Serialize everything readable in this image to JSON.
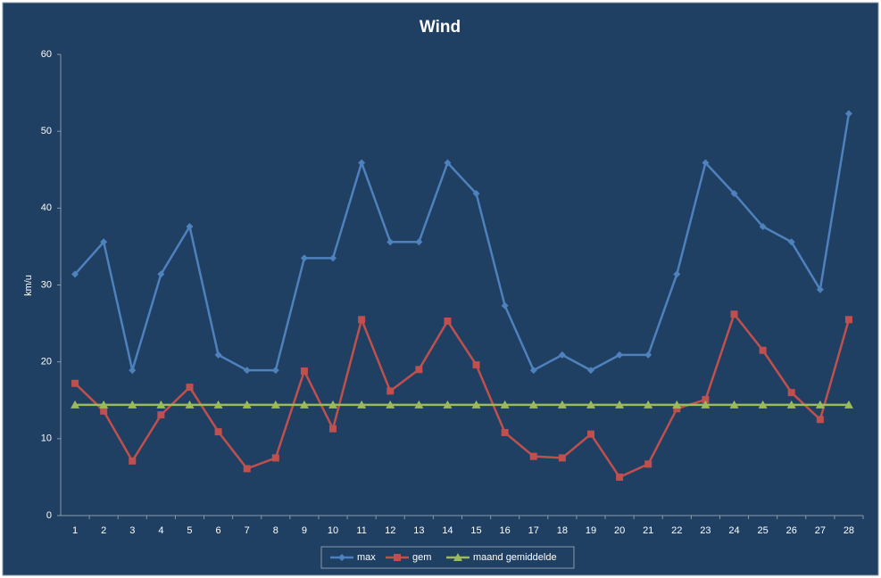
{
  "chart_data": {
    "type": "line",
    "title": "Wind",
    "y_label": "km/u",
    "categories": [
      "1",
      "2",
      "3",
      "4",
      "5",
      "6",
      "7",
      "8",
      "9",
      "10",
      "11",
      "12",
      "13",
      "14",
      "15",
      "16",
      "17",
      "18",
      "19",
      "20",
      "21",
      "22",
      "23",
      "24",
      "25",
      "26",
      "27",
      "28"
    ],
    "series": [
      {
        "name": "max",
        "color": "#4f81bd",
        "marker": "diamond",
        "values": [
          31.4,
          35.6,
          18.9,
          31.4,
          37.6,
          20.9,
          18.9,
          18.9,
          33.5,
          33.5,
          45.9,
          35.6,
          35.6,
          45.9,
          41.9,
          27.3,
          18.9,
          20.9,
          18.9,
          20.9,
          20.9,
          31.4,
          45.9,
          41.9,
          37.6,
          35.6,
          29.4,
          52.3
        ]
      },
      {
        "name": "gem",
        "color": "#c0504d",
        "marker": "square",
        "values": [
          17.2,
          13.6,
          7.1,
          13.1,
          16.7,
          10.9,
          6.1,
          7.5,
          18.8,
          11.3,
          25.5,
          16.2,
          19.0,
          25.3,
          19.6,
          10.8,
          7.7,
          7.5,
          10.6,
          5.0,
          6.7,
          13.9,
          15.1,
          26.2,
          21.5,
          16.0,
          12.5,
          25.5
        ]
      },
      {
        "name": "maand gemiddelde",
        "color": "#9bbb59",
        "marker": "triangle",
        "values": [
          14.4,
          14.4,
          14.4,
          14.4,
          14.4,
          14.4,
          14.4,
          14.4,
          14.4,
          14.4,
          14.4,
          14.4,
          14.4,
          14.4,
          14.4,
          14.4,
          14.4,
          14.4,
          14.4,
          14.4,
          14.4,
          14.4,
          14.4,
          14.4,
          14.4,
          14.4,
          14.4,
          14.4
        ]
      }
    ],
    "ylim": [
      0,
      60
    ],
    "yticks": [
      0,
      10,
      20,
      30,
      40,
      50,
      60
    ],
    "legend": "bottom"
  }
}
